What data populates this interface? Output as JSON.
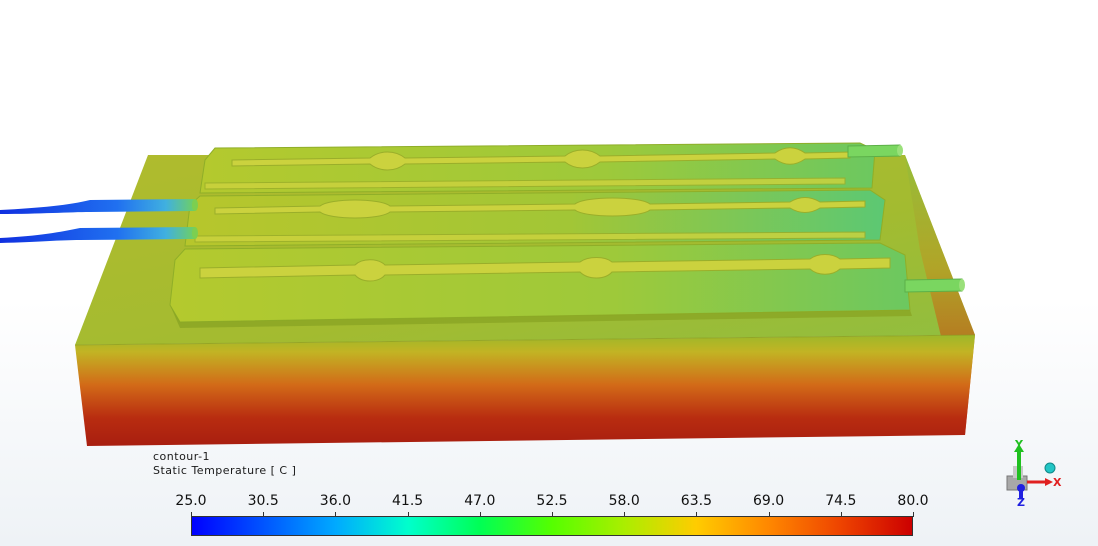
{
  "legend": {
    "name": "contour-1",
    "quantity": "Static Temperature [ C ]",
    "min": 25.0,
    "max": 80.0,
    "ticks": [
      "25.0",
      "30.5",
      "36.0",
      "41.5",
      "47.0",
      "52.5",
      "58.0",
      "63.5",
      "69.0",
      "74.5",
      "80.0"
    ],
    "colormap": [
      "#0000ff",
      "#0055ff",
      "#00aaff",
      "#00ffcc",
      "#00ff55",
      "#55ff00",
      "#aaee00",
      "#ffcc00",
      "#ff8800",
      "#ee4400",
      "#cc0000"
    ]
  },
  "triad": {
    "x_label": "X",
    "y_label": "Y",
    "z_label": "Z",
    "x_color": "#e02020",
    "y_color": "#20c020",
    "z_color": "#2020e0"
  }
}
